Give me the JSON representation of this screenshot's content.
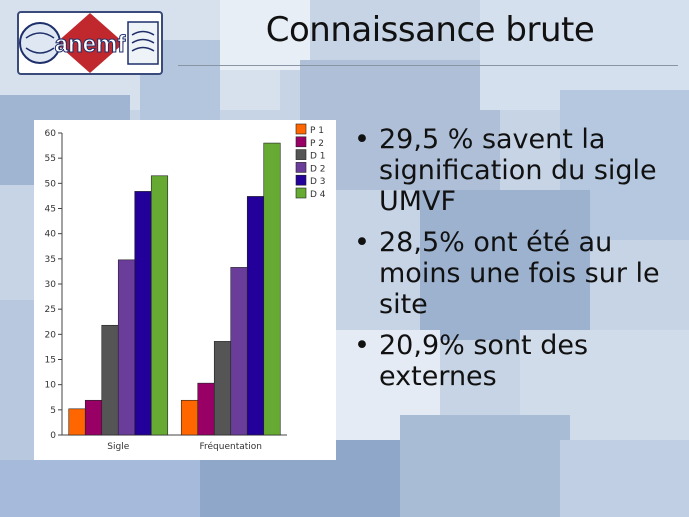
{
  "slide": {
    "title": "Connaissance brute",
    "logo_text": "anemf"
  },
  "bullets": [
    "29,5 % savent la signification du sigle UMVF",
    "28,5% ont été au moins une fois sur le site",
    "20,9% sont des externes"
  ],
  "chart_data": {
    "type": "bar",
    "categories": [
      "Sigle",
      "Fréquentation"
    ],
    "series": [
      {
        "name": "P 1",
        "color": "#ff6600",
        "values": [
          5.2,
          6.9
        ]
      },
      {
        "name": "P 2",
        "color": "#990066",
        "values": [
          6.9,
          10.3
        ]
      },
      {
        "name": "D 1",
        "color": "#555555",
        "values": [
          21.8,
          18.6
        ]
      },
      {
        "name": "D 2",
        "color": "#6a3d9a",
        "values": [
          34.8,
          33.3
        ]
      },
      {
        "name": "D 3",
        "color": "#220099",
        "values": [
          48.4,
          47.4
        ]
      },
      {
        "name": "D 4",
        "color": "#66aa33",
        "values": [
          51.5,
          58.0
        ]
      }
    ],
    "ylim": [
      0,
      60
    ],
    "yticks": [
      0,
      5,
      10,
      15,
      20,
      25,
      30,
      35,
      40,
      45,
      50,
      55,
      60
    ],
    "legend": "top-right",
    "grid": false
  }
}
